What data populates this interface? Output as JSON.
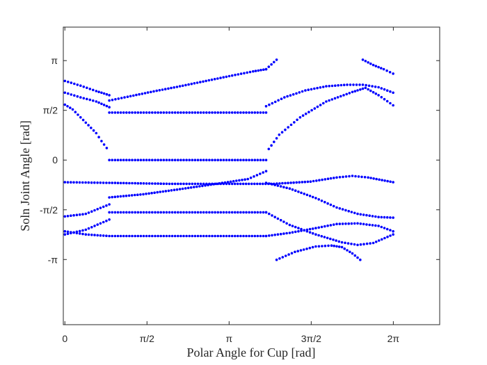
{
  "chart_data": {
    "type": "scatter",
    "title": "",
    "xlabel": "Polar Angle for Cup [rad]",
    "ylabel": "Soln Joint Angle [rad]",
    "xlim": [
      -0.03,
      7.17
    ],
    "ylim": [
      -5.2,
      4.2
    ],
    "grid": false,
    "legend": "none",
    "marker_color": "#0000ff",
    "axis_color": "#262626",
    "x_ticks": [
      {
        "value": 0,
        "label": "0"
      },
      {
        "value": 1.5708,
        "label": "π/2"
      },
      {
        "value": 3.1416,
        "label": "π"
      },
      {
        "value": 4.7124,
        "label": "3π/2"
      },
      {
        "value": 6.2832,
        "label": "2π"
      }
    ],
    "y_ticks": [
      {
        "value": 3.1416,
        "label": "π"
      },
      {
        "value": 1.5708,
        "label": "π/2"
      },
      {
        "value": 0,
        "label": "0"
      },
      {
        "value": -1.5708,
        "label": "-π/2"
      },
      {
        "value": -3.1416,
        "label": "-π"
      }
    ],
    "curves": [
      {
        "x": [
          0,
          0.3,
          0.6,
          0.85
        ],
        "y": [
          2.5,
          2.35,
          2.18,
          2.05
        ]
      },
      {
        "x": [
          0.85,
          1.2,
          1.7,
          2.2,
          2.7,
          3.2,
          3.6,
          3.85
        ],
        "y": [
          1.88,
          2.0,
          2.17,
          2.33,
          2.5,
          2.67,
          2.8,
          2.87
        ]
      },
      {
        "x": [
          3.85,
          3.95,
          4.05
        ],
        "y": [
          2.87,
          3.02,
          3.17
        ]
      },
      {
        "x": [
          0,
          0.3,
          0.6,
          0.85
        ],
        "y": [
          2.13,
          1.98,
          1.85,
          1.67
        ]
      },
      {
        "x": [
          0.85,
          2.0,
          3.2,
          3.85
        ],
        "y": [
          1.5,
          1.5,
          1.5,
          1.5
        ]
      },
      {
        "x": [
          3.85,
          4.2,
          4.6,
          5.0,
          5.4,
          5.7,
          6.0,
          6.28
        ],
        "y": [
          1.7,
          1.98,
          2.2,
          2.33,
          2.38,
          2.38,
          2.3,
          2.13
        ]
      },
      {
        "x": [
          0,
          0.15,
          0.3,
          0.45,
          0.6,
          0.7,
          0.8
        ],
        "y": [
          1.75,
          1.6,
          1.35,
          1.1,
          0.85,
          0.6,
          0.38
        ]
      },
      {
        "x": [
          3.9,
          4.1,
          4.5,
          5.0,
          5.5,
          5.75,
          6.0,
          6.28
        ],
        "y": [
          0.35,
          0.8,
          1.35,
          1.85,
          2.15,
          2.28,
          2.05,
          1.73
        ]
      },
      {
        "x": [
          5.7,
          5.9,
          6.1,
          6.28
        ],
        "y": [
          3.17,
          3.0,
          2.87,
          2.73
        ]
      },
      {
        "x": [
          0.85,
          2.0,
          3.2,
          3.85
        ],
        "y": [
          0,
          0,
          0,
          0
        ]
      },
      {
        "x": [
          0,
          0.85,
          2.0,
          3.2,
          4.0,
          4.7,
          5.2,
          5.5,
          5.8,
          6.28
        ],
        "y": [
          -0.7,
          -0.72,
          -0.75,
          -0.75,
          -0.75,
          -0.68,
          -0.55,
          -0.5,
          -0.55,
          -0.7
        ]
      },
      {
        "x": [
          0,
          0.4,
          0.85
        ],
        "y": [
          -1.78,
          -1.7,
          -1.4
        ]
      },
      {
        "x": [
          0.85,
          1.5,
          2.2,
          2.9,
          3.5,
          3.85
        ],
        "y": [
          -1.18,
          -1.08,
          -0.92,
          -0.75,
          -0.6,
          -0.35
        ]
      },
      {
        "x": [
          3.85,
          4.3,
          4.8,
          5.2,
          5.6,
          6.0,
          6.28
        ],
        "y": [
          -0.72,
          -0.9,
          -1.2,
          -1.5,
          -1.7,
          -1.8,
          -1.82
        ]
      },
      {
        "x": [
          0,
          0.4,
          0.85
        ],
        "y": [
          -2.35,
          -2.2,
          -1.88
        ]
      },
      {
        "x": [
          0.85,
          2.0,
          3.2,
          3.85
        ],
        "y": [
          -1.65,
          -1.65,
          -1.65,
          -1.65
        ]
      },
      {
        "x": [
          3.85,
          4.3,
          4.8,
          5.3,
          5.6,
          5.9,
          6.28
        ],
        "y": [
          -1.65,
          -2.05,
          -2.35,
          -2.6,
          -2.68,
          -2.62,
          -2.35
        ]
      },
      {
        "x": [
          0,
          0.4,
          0.85,
          2.0,
          3.2,
          3.85
        ],
        "y": [
          -2.25,
          -2.35,
          -2.4,
          -2.4,
          -2.4,
          -2.4
        ]
      },
      {
        "x": [
          3.85,
          4.3,
          4.8,
          5.2,
          5.6,
          6.0,
          6.28
        ],
        "y": [
          -2.4,
          -2.3,
          -2.15,
          -2.02,
          -2.0,
          -2.08,
          -2.25
        ]
      },
      {
        "x": [
          4.05,
          4.4,
          4.8,
          5.1,
          5.3,
          5.5,
          5.65
        ],
        "y": [
          -3.15,
          -2.9,
          -2.73,
          -2.7,
          -2.75,
          -2.95,
          -3.15
        ]
      }
    ]
  }
}
